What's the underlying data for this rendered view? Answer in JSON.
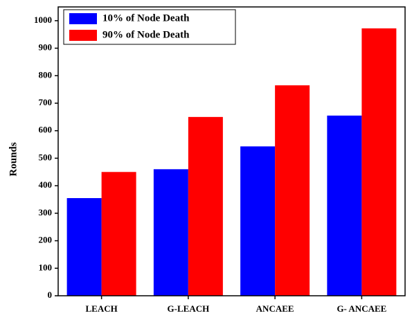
{
  "chart_data": {
    "type": "bar",
    "y_label": "Rounds",
    "categories": [
      "LEACH",
      "G-LEACH",
      "ANCAEE",
      "G- ANCAEE"
    ],
    "series": [
      {
        "name": "10% of Node Death",
        "color": "#0000ff",
        "values": [
          355,
          460,
          543,
          655
        ]
      },
      {
        "name": "90% of Node Death",
        "color": "#ff0000",
        "values": [
          450,
          650,
          765,
          972
        ]
      }
    ],
    "ylim": [
      0,
      1050
    ],
    "yticks": [
      0,
      100,
      200,
      300,
      400,
      500,
      600,
      700,
      800,
      900,
      1000
    ],
    "legend": "upper-left"
  }
}
